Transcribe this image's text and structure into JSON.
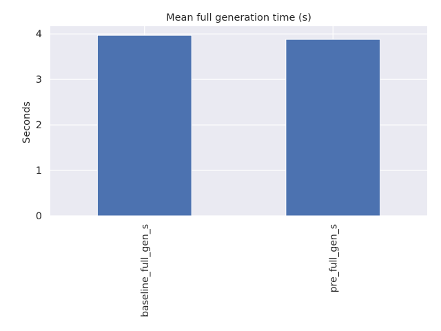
{
  "chart_data": {
    "type": "bar",
    "title": "Mean full generation time (s)",
    "xlabel": "",
    "ylabel": "Seconds",
    "categories": [
      "baseline_full_gen_s",
      "pre_full_gen_s"
    ],
    "values": [
      3.97,
      3.88
    ],
    "ylim": [
      0,
      4.17
    ],
    "yticks": [
      0,
      1,
      2,
      3,
      4
    ],
    "grid": true,
    "legend": "none",
    "colors": {
      "bar": "#4c72b0",
      "plot_background": "#eaeaf2",
      "grid": "#ffffff"
    }
  }
}
